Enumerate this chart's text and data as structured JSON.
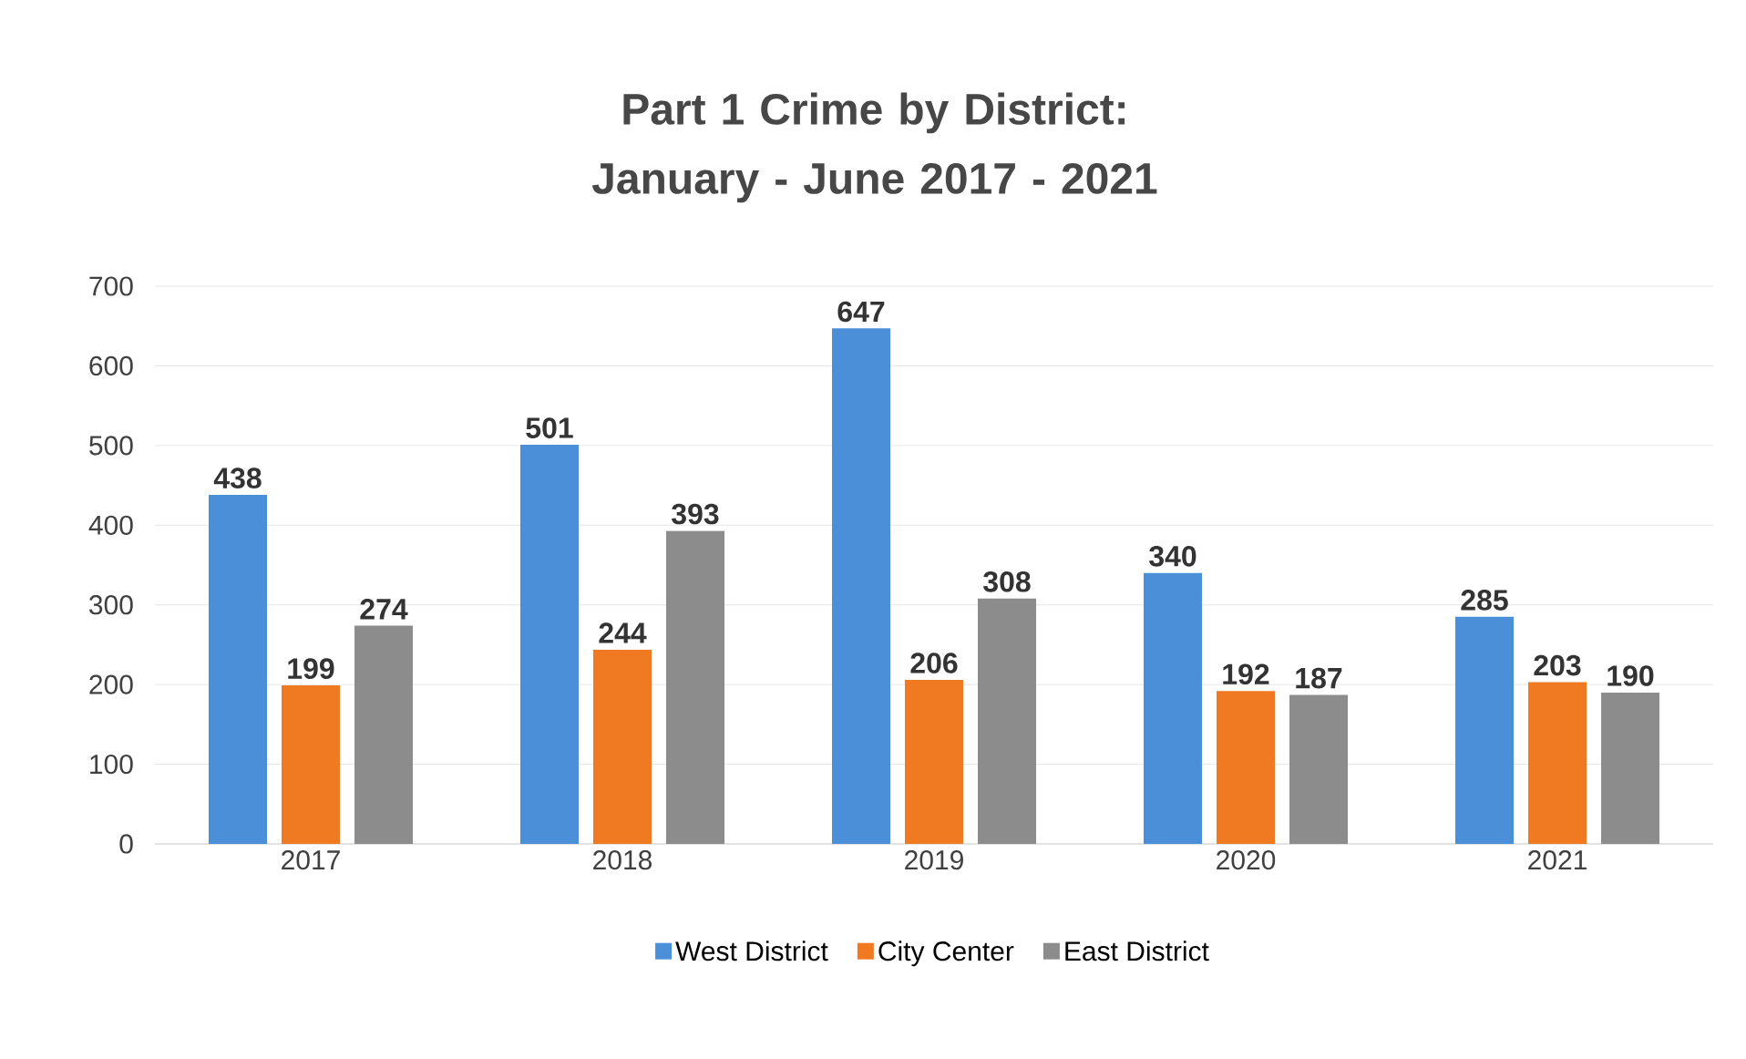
{
  "chart_data": {
    "type": "bar",
    "title": "Part 1 Crime by District: January - June 2017 - 2021",
    "categories": [
      "2017",
      "2018",
      "2019",
      "2020",
      "2021"
    ],
    "series": [
      {
        "name": "West District",
        "color": "#4a8fd8",
        "values": [
          438,
          501,
          647,
          340,
          285
        ]
      },
      {
        "name": "City Center",
        "color": "#f07a22",
        "values": [
          199,
          244,
          206,
          192,
          203
        ]
      },
      {
        "name": "East District",
        "color": "#8c8c8c",
        "values": [
          274,
          393,
          308,
          187,
          190
        ]
      }
    ],
    "ylim": [
      0,
      700
    ],
    "yticks": [
      0,
      100,
      200,
      300,
      400,
      500,
      600,
      700
    ],
    "grid": "y",
    "legend": "bottom",
    "data_labels": true
  }
}
